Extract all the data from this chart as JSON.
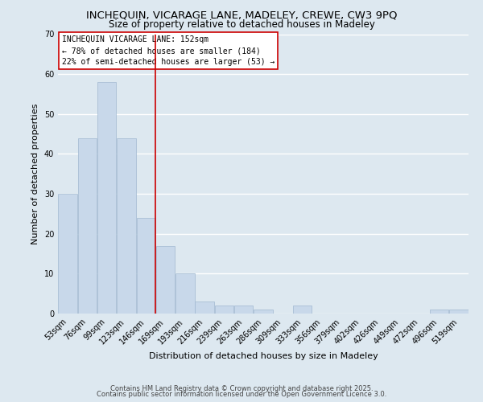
{
  "title_line1": "INCHEQUIN, VICARAGE LANE, MADELEY, CREWE, CW3 9PQ",
  "title_line2": "Size of property relative to detached houses in Madeley",
  "xlabel": "Distribution of detached houses by size in Madeley",
  "ylabel": "Number of detached properties",
  "categories": [
    "53sqm",
    "76sqm",
    "99sqm",
    "123sqm",
    "146sqm",
    "169sqm",
    "193sqm",
    "216sqm",
    "239sqm",
    "263sqm",
    "286sqm",
    "309sqm",
    "333sqm",
    "356sqm",
    "379sqm",
    "402sqm",
    "426sqm",
    "449sqm",
    "472sqm",
    "496sqm",
    "519sqm"
  ],
  "values": [
    30,
    44,
    58,
    44,
    24,
    17,
    10,
    3,
    2,
    2,
    1,
    0,
    2,
    0,
    0,
    0,
    0,
    0,
    0,
    1,
    1
  ],
  "bar_color": "#c8d8ea",
  "bar_edge_color": "#a0b8d0",
  "background_color": "#dde8f0",
  "plot_bg_color": "#dde8f0",
  "grid_color": "#ffffff",
  "ref_line_x": 4.5,
  "ref_line_color": "#cc0000",
  "annotation_title": "INCHEQUIN VICARAGE LANE: 152sqm",
  "annotation_line2": "← 78% of detached houses are smaller (184)",
  "annotation_line3": "22% of semi-detached houses are larger (53) →",
  "annotation_box_color": "#ffffff",
  "annotation_box_edge": "#cc0000",
  "ylim": [
    0,
    70
  ],
  "yticks": [
    0,
    10,
    20,
    30,
    40,
    50,
    60,
    70
  ],
  "footer_line1": "Contains HM Land Registry data © Crown copyright and database right 2025.",
  "footer_line2": "Contains public sector information licensed under the Open Government Licence 3.0.",
  "title_fontsize": 9.5,
  "subtitle_fontsize": 8.5,
  "axis_label_fontsize": 8,
  "tick_fontsize": 7,
  "annotation_fontsize": 7,
  "footer_fontsize": 6
}
